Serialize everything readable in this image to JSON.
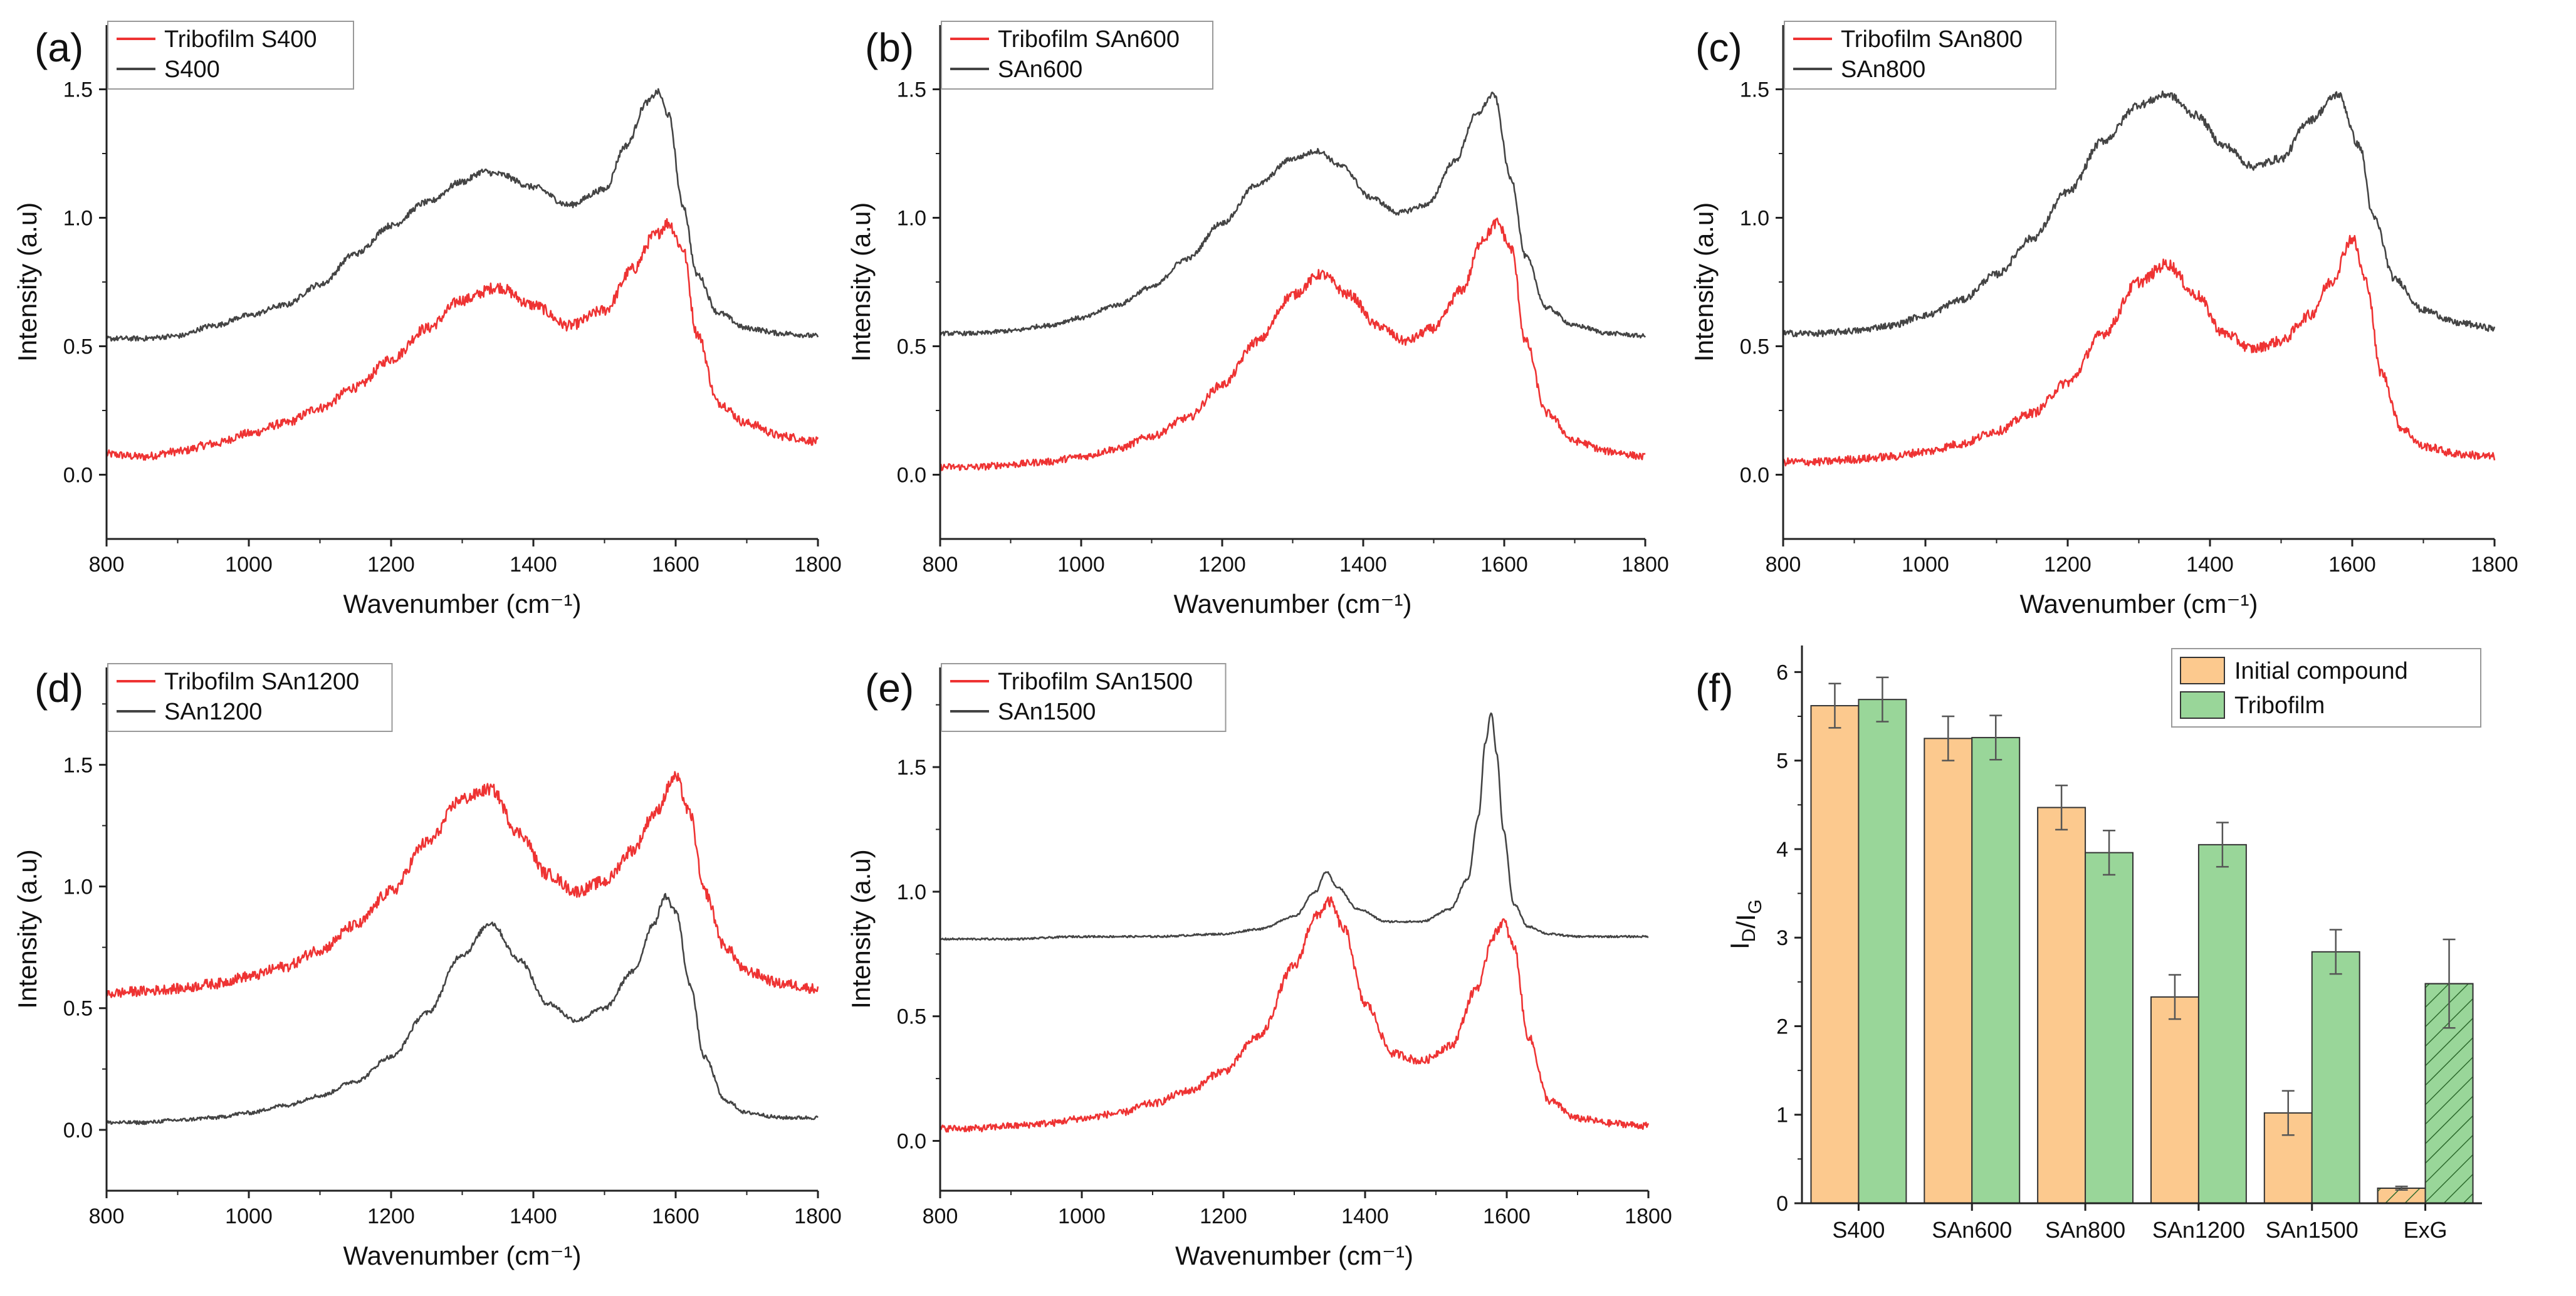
{
  "figure": {
    "panels": [
      "(a)",
      "(b)",
      "(c)",
      "(d)",
      "(e)",
      "(f)"
    ]
  },
  "colors": {
    "tribofilm_line": "#ee3333",
    "initial_line": "#444444",
    "initial_bar": "#fcc98e",
    "tribofilm_bar": "#99d699",
    "error_bar": "#555555"
  },
  "chart_data": [
    {
      "panel": "(a)",
      "type": "line",
      "xlabel": "Wavenumber (cm⁻¹)",
      "ylabel": "Intensity (a.u)",
      "xlim": [
        800,
        1800
      ],
      "ylim": [
        -0.25,
        1.75
      ],
      "xticks": [
        "800",
        "1000",
        "1200",
        "1400",
        "1600",
        "1800"
      ],
      "yticks": [
        "0.0",
        "0.5",
        "1.0",
        "1.5"
      ],
      "legend": [
        "Tribofilm S400",
        "S400"
      ],
      "series": [
        {
          "name": "Tribofilm S400",
          "color": "#ee3333",
          "noise": 0.025,
          "x": [
            800,
            850,
            900,
            950,
            1000,
            1050,
            1100,
            1150,
            1200,
            1250,
            1300,
            1350,
            1400,
            1450,
            1500,
            1540,
            1570,
            1590,
            1610,
            1630,
            1660,
            1700,
            1750,
            1800
          ],
          "y": [
            0.08,
            0.07,
            0.09,
            0.12,
            0.16,
            0.2,
            0.26,
            0.34,
            0.45,
            0.57,
            0.68,
            0.73,
            0.66,
            0.58,
            0.64,
            0.8,
            0.93,
            0.98,
            0.88,
            0.55,
            0.28,
            0.2,
            0.15,
            0.13
          ]
        },
        {
          "name": "S400",
          "color": "#444444",
          "noise": 0.012,
          "x": [
            800,
            850,
            900,
            950,
            1000,
            1050,
            1100,
            1150,
            1200,
            1250,
            1300,
            1330,
            1350,
            1400,
            1450,
            1500,
            1530,
            1560,
            1575,
            1590,
            1610,
            1630,
            1660,
            1700,
            1750,
            1800
          ],
          "y": [
            0.53,
            0.53,
            0.54,
            0.58,
            0.62,
            0.66,
            0.74,
            0.86,
            0.97,
            1.06,
            1.14,
            1.18,
            1.17,
            1.12,
            1.05,
            1.11,
            1.28,
            1.45,
            1.49,
            1.4,
            1.05,
            0.78,
            0.63,
            0.57,
            0.55,
            0.54
          ]
        }
      ]
    },
    {
      "panel": "(b)",
      "type": "line",
      "xlabel": "Wavenumber (cm⁻¹)",
      "ylabel": "Intensity (a.u)",
      "xlim": [
        800,
        1800
      ],
      "ylim": [
        -0.25,
        1.75
      ],
      "xticks": [
        "800",
        "1000",
        "1200",
        "1400",
        "1600",
        "1800"
      ],
      "yticks": [
        "0.0",
        "0.5",
        "1.0",
        "1.5"
      ],
      "legend": [
        "Tribofilm SAn600",
        "SAn600"
      ],
      "series": [
        {
          "name": "Tribofilm SAn600",
          "color": "#ee3333",
          "noise": 0.022,
          "x": [
            800,
            850,
            900,
            950,
            1000,
            1050,
            1100,
            1150,
            1200,
            1250,
            1300,
            1340,
            1380,
            1420,
            1460,
            1500,
            1540,
            1570,
            1590,
            1610,
            1630,
            1660,
            1700,
            1750,
            1800
          ],
          "y": [
            0.03,
            0.03,
            0.04,
            0.05,
            0.07,
            0.1,
            0.15,
            0.22,
            0.35,
            0.52,
            0.7,
            0.78,
            0.7,
            0.58,
            0.52,
            0.57,
            0.72,
            0.92,
            0.98,
            0.88,
            0.52,
            0.24,
            0.13,
            0.09,
            0.07
          ]
        },
        {
          "name": "SAn600",
          "color": "#444444",
          "noise": 0.01,
          "x": [
            800,
            850,
            900,
            950,
            1000,
            1050,
            1100,
            1150,
            1200,
            1250,
            1300,
            1335,
            1370,
            1410,
            1450,
            1490,
            1530,
            1560,
            1585,
            1610,
            1630,
            1660,
            1700,
            1750,
            1800
          ],
          "y": [
            0.55,
            0.55,
            0.56,
            0.58,
            0.61,
            0.66,
            0.73,
            0.84,
            0.98,
            1.13,
            1.23,
            1.26,
            1.2,
            1.08,
            1.02,
            1.05,
            1.22,
            1.4,
            1.48,
            1.15,
            0.85,
            0.65,
            0.58,
            0.55,
            0.54
          ]
        }
      ]
    },
    {
      "panel": "(c)",
      "type": "line",
      "xlabel": "Wavenumber (cm⁻¹)",
      "ylabel": "Intensity (a.u)",
      "xlim": [
        800,
        1800
      ],
      "ylim": [
        -0.25,
        1.75
      ],
      "xticks": [
        "800",
        "1000",
        "1200",
        "1400",
        "1600",
        "1800"
      ],
      "yticks": [
        "0.0",
        "0.5",
        "1.0",
        "1.5"
      ],
      "legend": [
        "Tribofilm SAn800",
        "SAn800"
      ],
      "series": [
        {
          "name": "Tribofilm SAn800",
          "color": "#ee3333",
          "noise": 0.025,
          "x": [
            800,
            850,
            900,
            950,
            1000,
            1050,
            1100,
            1150,
            1200,
            1250,
            1300,
            1340,
            1380,
            1420,
            1460,
            1500,
            1540,
            1570,
            1600,
            1620,
            1640,
            1670,
            1700,
            1750,
            1800
          ],
          "y": [
            0.05,
            0.05,
            0.06,
            0.07,
            0.09,
            0.12,
            0.17,
            0.24,
            0.36,
            0.55,
            0.75,
            0.82,
            0.7,
            0.55,
            0.49,
            0.52,
            0.62,
            0.75,
            0.92,
            0.75,
            0.4,
            0.18,
            0.11,
            0.08,
            0.07
          ]
        },
        {
          "name": "SAn800",
          "color": "#444444",
          "noise": 0.015,
          "x": [
            800,
            850,
            900,
            950,
            1000,
            1050,
            1100,
            1150,
            1200,
            1250,
            1300,
            1340,
            1380,
            1420,
            1460,
            1500,
            1540,
            1580,
            1610,
            1630,
            1660,
            1700,
            1750,
            1800
          ],
          "y": [
            0.55,
            0.55,
            0.56,
            0.58,
            0.62,
            0.68,
            0.78,
            0.92,
            1.1,
            1.3,
            1.44,
            1.48,
            1.4,
            1.28,
            1.2,
            1.23,
            1.38,
            1.48,
            1.28,
            1.0,
            0.76,
            0.64,
            0.59,
            0.57
          ]
        }
      ]
    },
    {
      "panel": "(d)",
      "type": "line",
      "xlabel": "Wavenumber (cm⁻¹)",
      "ylabel": "Intensity (a.u)",
      "xlim": [
        800,
        1800
      ],
      "ylim": [
        -0.25,
        1.9
      ],
      "xticks": [
        "800",
        "1000",
        "1200",
        "1400",
        "1600",
        "1800"
      ],
      "yticks": [
        "0.0",
        "0.5",
        "1.0",
        "1.5"
      ],
      "legend": [
        "Tribofilm SAn1200",
        "SAn1200"
      ],
      "series": [
        {
          "name": "Tribofilm SAn1200",
          "color": "#ee3333",
          "noise": 0.025,
          "x": [
            800,
            850,
            900,
            950,
            1000,
            1050,
            1100,
            1150,
            1200,
            1250,
            1300,
            1340,
            1380,
            1420,
            1460,
            1500,
            1540,
            1570,
            1600,
            1620,
            1640,
            1670,
            1700,
            1750,
            1800
          ],
          "y": [
            0.56,
            0.57,
            0.58,
            0.6,
            0.63,
            0.67,
            0.74,
            0.84,
            0.98,
            1.18,
            1.36,
            1.4,
            1.22,
            1.05,
            0.98,
            1.02,
            1.15,
            1.3,
            1.45,
            1.3,
            0.98,
            0.75,
            0.65,
            0.6,
            0.58
          ]
        },
        {
          "name": "SAn1200",
          "color": "#444444",
          "noise": 0.012,
          "x": [
            800,
            850,
            900,
            950,
            1000,
            1050,
            1100,
            1150,
            1200,
            1250,
            1300,
            1340,
            1380,
            1420,
            1460,
            1500,
            1540,
            1570,
            1585,
            1600,
            1620,
            1640,
            1670,
            1700,
            1750,
            1800
          ],
          "y": [
            0.03,
            0.03,
            0.04,
            0.05,
            0.07,
            0.1,
            0.14,
            0.2,
            0.3,
            0.48,
            0.72,
            0.85,
            0.7,
            0.52,
            0.45,
            0.5,
            0.65,
            0.85,
            0.96,
            0.9,
            0.6,
            0.3,
            0.12,
            0.07,
            0.05,
            0.05
          ]
        }
      ]
    },
    {
      "panel": "(e)",
      "type": "line",
      "xlabel": "Wavenumber (cm⁻¹)",
      "ylabel": "Intensity (a.u)",
      "xlim": [
        800,
        1800
      ],
      "ylim": [
        -0.2,
        1.9
      ],
      "xticks": [
        "800",
        "1000",
        "1200",
        "1400",
        "1600",
        "1800"
      ],
      "yticks": [
        "0.0",
        "0.5",
        "1.0",
        "1.5"
      ],
      "legend": [
        "Tribofilm SAn1500",
        "SAn1500"
      ],
      "series": [
        {
          "name": "Tribofilm SAn1500",
          "color": "#ee3333",
          "noise": 0.022,
          "x": [
            800,
            850,
            900,
            950,
            1000,
            1050,
            1100,
            1150,
            1200,
            1250,
            1300,
            1330,
            1350,
            1370,
            1400,
            1440,
            1480,
            1520,
            1560,
            1580,
            1595,
            1610,
            1630,
            1660,
            1700,
            1750,
            1800
          ],
          "y": [
            0.05,
            0.05,
            0.06,
            0.07,
            0.09,
            0.11,
            0.15,
            0.2,
            0.28,
            0.42,
            0.7,
            0.9,
            0.96,
            0.85,
            0.55,
            0.35,
            0.32,
            0.38,
            0.62,
            0.82,
            0.88,
            0.78,
            0.42,
            0.16,
            0.09,
            0.07,
            0.06
          ]
        },
        {
          "name": "SAn1500",
          "color": "#444444",
          "noise": 0.004,
          "x": [
            800,
            900,
            1000,
            1100,
            1200,
            1250,
            1300,
            1330,
            1345,
            1360,
            1390,
            1430,
            1480,
            1520,
            1545,
            1560,
            1570,
            1578,
            1586,
            1595,
            1610,
            1630,
            1660,
            1700,
            1800
          ],
          "y": [
            0.81,
            0.81,
            0.82,
            0.82,
            0.83,
            0.85,
            0.9,
            1.0,
            1.08,
            1.02,
            0.93,
            0.88,
            0.88,
            0.93,
            1.05,
            1.3,
            1.6,
            1.72,
            1.55,
            1.25,
            0.95,
            0.86,
            0.83,
            0.82,
            0.82
          ]
        }
      ]
    },
    {
      "panel": "(f)",
      "type": "bar",
      "ylabel": "I_D/I_G",
      "categories": [
        "S400",
        "SAn600",
        "SAn800",
        "SAn1200",
        "SAn1500",
        "ExG"
      ],
      "ylim": [
        0,
        6.3
      ],
      "yticks": [
        "0",
        "1",
        "2",
        "3",
        "4",
        "5",
        "6"
      ],
      "legend": [
        "Initial compound",
        "Tribofilm"
      ],
      "hatched_category": "ExG",
      "series": [
        {
          "name": "Initial compound",
          "color": "#fcc98e",
          "values": [
            5.62,
            5.25,
            4.47,
            2.33,
            1.02,
            0.17
          ],
          "errors": [
            0.25,
            0.25,
            0.25,
            0.25,
            0.25,
            0.02
          ]
        },
        {
          "name": "Tribofilm",
          "color": "#99d699",
          "values": [
            5.69,
            5.26,
            3.96,
            4.05,
            2.84,
            2.48
          ],
          "errors": [
            0.25,
            0.25,
            0.25,
            0.25,
            0.25,
            0.5
          ]
        }
      ]
    }
  ]
}
